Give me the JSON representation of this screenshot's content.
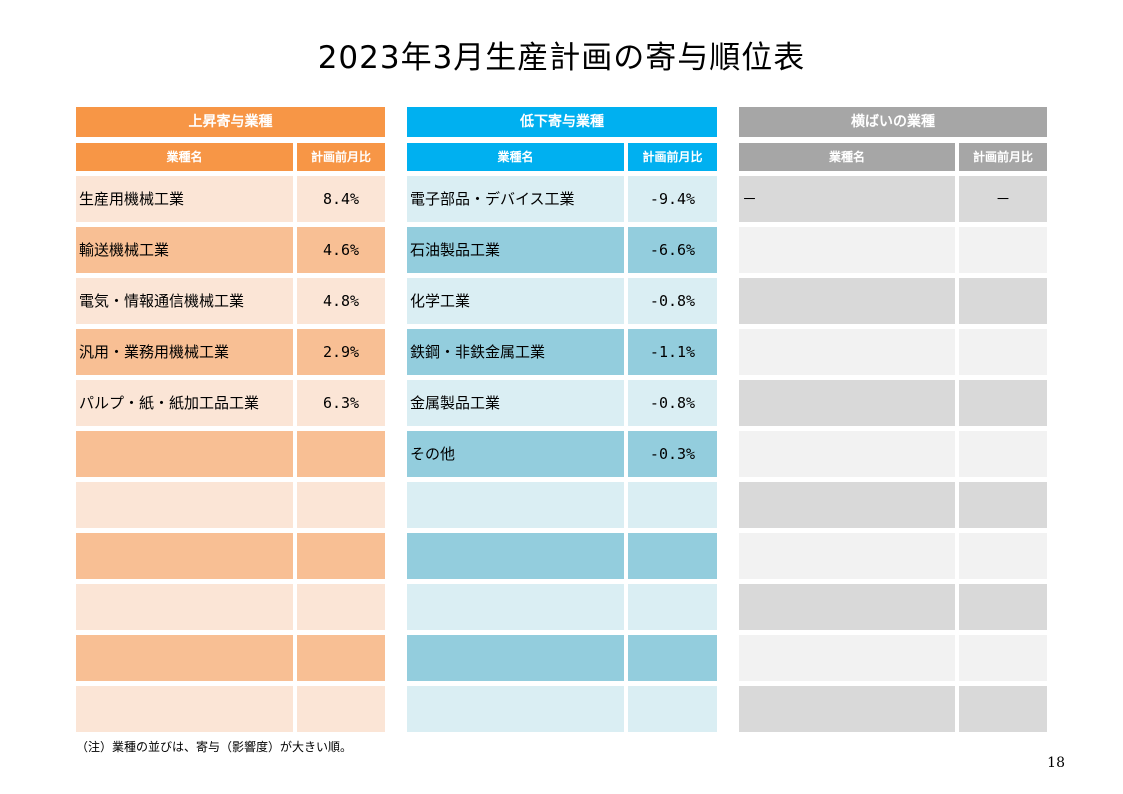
{
  "title": "2023年3月生産計画の寄与順位表",
  "panels": {
    "up": {
      "header": "上昇寄与業種",
      "col_name": "業種名",
      "col_value": "計画前月比",
      "rows": [
        {
          "name": "生産用機械工業",
          "value": "8.4%"
        },
        {
          "name": "輸送機械工業",
          "value": "4.6%"
        },
        {
          "name": "電気・情報通信機械工業",
          "value": "4.8%"
        },
        {
          "name": "汎用・業務用機械工業",
          "value": "2.9%"
        },
        {
          "name": "パルプ・紙・紙加工品工業",
          "value": "6.3%"
        },
        {
          "name": "",
          "value": ""
        },
        {
          "name": "",
          "value": ""
        },
        {
          "name": "",
          "value": ""
        },
        {
          "name": "",
          "value": ""
        },
        {
          "name": "",
          "value": ""
        },
        {
          "name": "",
          "value": ""
        }
      ]
    },
    "down": {
      "header": "低下寄与業種",
      "col_name": "業種名",
      "col_value": "計画前月比",
      "rows": [
        {
          "name": "電子部品・デバイス工業",
          "value": "-9.4%"
        },
        {
          "name": "石油製品工業",
          "value": "-6.6%"
        },
        {
          "name": "化学工業",
          "value": "-0.8%"
        },
        {
          "name": "鉄鋼・非鉄金属工業",
          "value": "-1.1%"
        },
        {
          "name": "金属製品工業",
          "value": "-0.8%"
        },
        {
          "name": "その他",
          "value": "-0.3%"
        },
        {
          "name": "",
          "value": ""
        },
        {
          "name": "",
          "value": ""
        },
        {
          "name": "",
          "value": ""
        },
        {
          "name": "",
          "value": ""
        },
        {
          "name": "",
          "value": ""
        }
      ]
    },
    "flat": {
      "header": "横ばいの業種",
      "col_name": "業種名",
      "col_value": "計画前月比",
      "rows": [
        {
          "name": "－",
          "value": "－"
        },
        {
          "name": "",
          "value": ""
        },
        {
          "name": "",
          "value": ""
        },
        {
          "name": "",
          "value": ""
        },
        {
          "name": "",
          "value": ""
        },
        {
          "name": "",
          "value": ""
        },
        {
          "name": "",
          "value": ""
        },
        {
          "name": "",
          "value": ""
        },
        {
          "name": "",
          "value": ""
        },
        {
          "name": "",
          "value": ""
        },
        {
          "name": "",
          "value": ""
        }
      ]
    }
  },
  "note": "（注）業種の並びは、寄与（影響度）が大きい順。",
  "page_number": "18"
}
